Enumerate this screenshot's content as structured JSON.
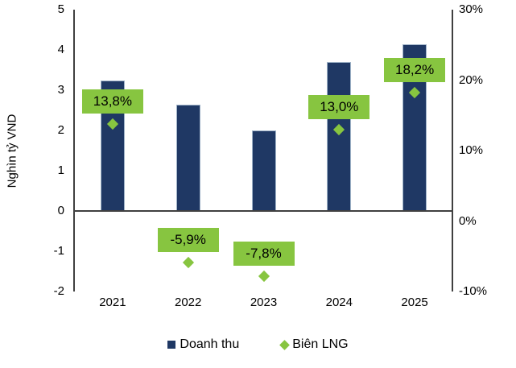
{
  "chart_data": {
    "type": "combo",
    "subtypes": [
      "bar",
      "scatter"
    ],
    "categories": [
      "2021",
      "2022",
      "2023",
      "2024",
      "2025"
    ],
    "series": [
      {
        "name": "Doanh thu",
        "type": "bar",
        "axis": "left",
        "values": [
          3.25,
          2.65,
          2.0,
          3.7,
          4.15
        ],
        "color": "#1F3864"
      },
      {
        "name": "Biên LNG",
        "type": "scatter",
        "marker": "diamond",
        "axis": "right",
        "values": [
          13.8,
          -5.9,
          -7.8,
          13.0,
          18.2
        ],
        "labels": [
          "13,8%",
          "-5,9%",
          "-7,8%",
          "13,0%",
          "18,2%"
        ],
        "color": "#87C540",
        "label_bg": "#87C540",
        "label_text_color": "#000000"
      }
    ],
    "left_axis": {
      "title": "Nghìn tỷ VND",
      "min": -2,
      "max": 5,
      "ticks": [
        5,
        4,
        3,
        2,
        1,
        0,
        -1,
        -2
      ]
    },
    "right_axis": {
      "min": -10,
      "max": 30,
      "tick_values": [
        30,
        20,
        10,
        0,
        -10
      ],
      "tick_labels": [
        "30%",
        "20%",
        "10%",
        "0%",
        "-10%"
      ]
    },
    "grid": false,
    "legend_position": "bottom",
    "legend": [
      {
        "label": "Doanh thu",
        "marker": "square",
        "color": "#1F3864"
      },
      {
        "label": "Biên LNG",
        "marker": "diamond",
        "color": "#87C540"
      }
    ],
    "axis_line_color": "#404040"
  }
}
